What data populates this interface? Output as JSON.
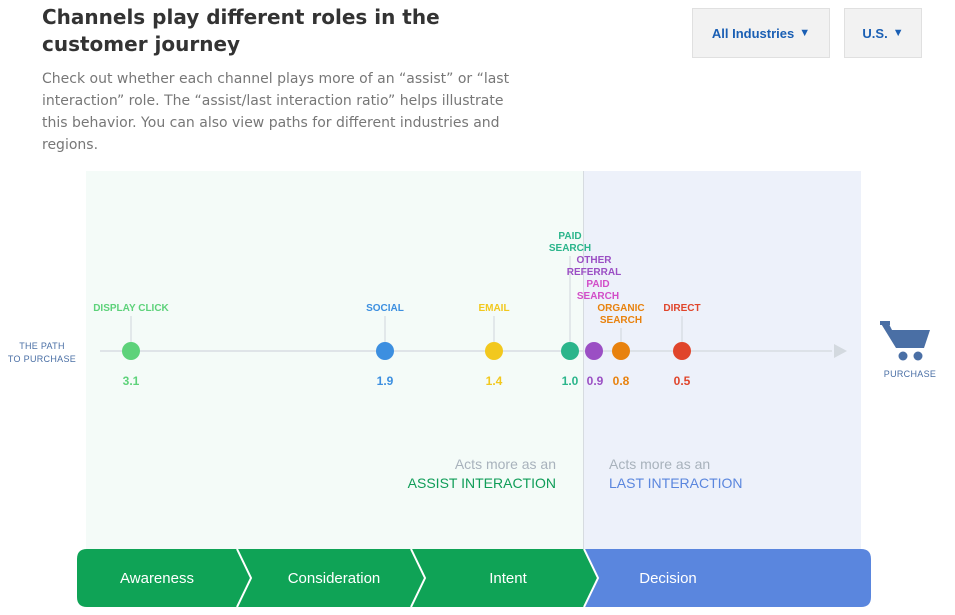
{
  "header": {
    "title": "Channels play different roles in the customer journey",
    "description": "Check out whether each channel plays more of an “assist” or “last interaction” role. The “assist/last interaction ratio” helps illustrate this behavior. You can also view paths for different industries and regions."
  },
  "filters": {
    "industry": "All Industries",
    "region": "U.S."
  },
  "path": {
    "start_label_line1": "THE PATH",
    "start_label_line2": "TO PURCHASE",
    "end_label": "PURCHASE"
  },
  "channels": [
    {
      "name": "DISPLAY CLICK",
      "ratio": "3.1",
      "color": "#5dd27a"
    },
    {
      "name": "SOCIAL",
      "ratio": "1.9",
      "color": "#3c8fe0"
    },
    {
      "name": "EMAIL",
      "ratio": "1.4",
      "color": "#f2c81e"
    },
    {
      "name": "PAID SEARCH",
      "ratio": "1.0",
      "color": "#2bb58b"
    },
    {
      "name": "OTHER REFERRAL",
      "ratio": "0.9",
      "color": "#9b4fc4"
    },
    {
      "name": "PAID SEARCH",
      "ratio": "0.9",
      "color": "#d24ec8"
    },
    {
      "name": "ORGANIC SEARCH",
      "ratio": "0.8",
      "color": "#e8820e"
    },
    {
      "name": "DIRECT",
      "ratio": "0.5",
      "color": "#e0452b"
    }
  ],
  "zones": {
    "assist_pre": "Acts more as an",
    "assist_main": "ASSIST INTERACTION",
    "last_pre": "Acts more as an",
    "last_main": "LAST INTERACTION"
  },
  "stages": [
    {
      "label": "Awareness",
      "color": "#0fa356"
    },
    {
      "label": "Consideration",
      "color": "#0fa356"
    },
    {
      "label": "Intent",
      "color": "#0fa356"
    },
    {
      "label": "Decision",
      "color": "#5a86de"
    }
  ],
  "colors": {
    "assist_accent": "#0f9d58",
    "last_accent": "#5a86de",
    "path_label": "#4a6fa5"
  }
}
